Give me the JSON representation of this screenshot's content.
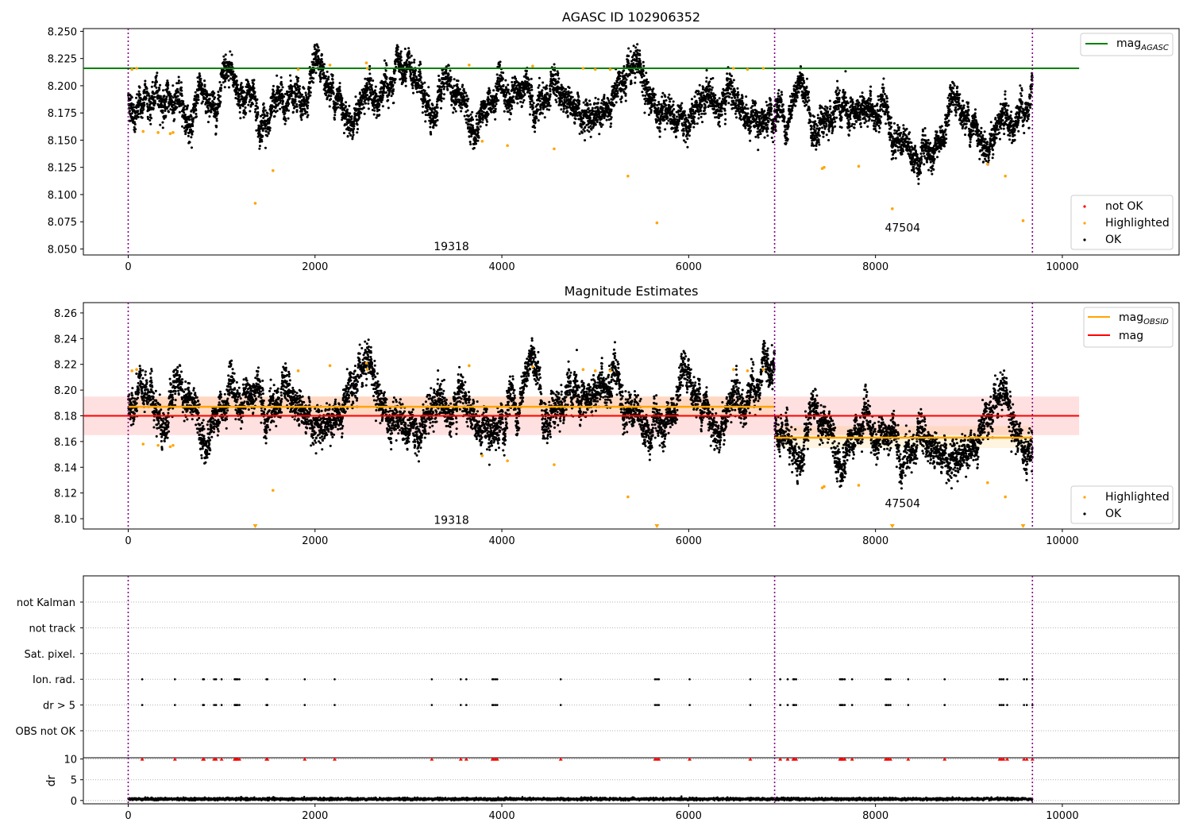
{
  "chart_data": [
    {
      "type": "scatter",
      "title": "AGASC ID 102906352",
      "xlim": [
        -480,
        11250
      ],
      "ylim": [
        8.0445,
        8.2525
      ],
      "x_ticks": [
        0,
        2000,
        4000,
        6000,
        8000,
        10000
      ],
      "y_ticks": [
        8.05,
        8.075,
        8.1,
        8.125,
        8.15,
        8.175,
        8.2,
        8.225,
        8.25
      ],
      "y_tick_format": 3,
      "obs_boundaries": [
        0,
        6920,
        9680
      ],
      "obs_labels": [
        {
          "text": "19318",
          "x": 3460,
          "y": 8.049
        },
        {
          "text": "47504",
          "x": 8290,
          "y": 8.066
        }
      ],
      "ref_lines": [
        {
          "name": "mag_AGASC",
          "color": "#008000",
          "value": 8.216,
          "x0": -480,
          "x1": 10180
        }
      ],
      "segments": [
        {
          "x0": 0,
          "x1": 6920,
          "mean": 8.186,
          "spread": 0.009,
          "noise": 0.006
        },
        {
          "x0": 6920,
          "x1": 9680,
          "mean": 8.163,
          "spread": 0.009,
          "noise": 0.006
        }
      ],
      "highlighted": [
        [
          40,
          8.215
        ],
        [
          90,
          8.216
        ],
        [
          160,
          8.158
        ],
        [
          320,
          8.157
        ],
        [
          450,
          8.156
        ],
        [
          480,
          8.157
        ],
        [
          1360,
          8.092
        ],
        [
          1550,
          8.122
        ],
        [
          1820,
          8.215
        ],
        [
          2160,
          8.219
        ],
        [
          2550,
          8.221
        ],
        [
          2560,
          8.216
        ],
        [
          3650,
          8.219
        ],
        [
          3790,
          8.149
        ],
        [
          4060,
          8.145
        ],
        [
          4330,
          8.218
        ],
        [
          4560,
          8.142
        ],
        [
          4870,
          8.216
        ],
        [
          5000,
          8.215
        ],
        [
          5160,
          8.215
        ],
        [
          5350,
          8.117
        ],
        [
          5660,
          8.074
        ],
        [
          6480,
          8.216
        ],
        [
          6630,
          8.215
        ],
        [
          6800,
          8.216
        ],
        [
          7430,
          8.124
        ],
        [
          7450,
          8.125
        ],
        [
          7820,
          8.126
        ],
        [
          8180,
          8.087
        ],
        [
          9200,
          8.128
        ],
        [
          9390,
          8.117
        ],
        [
          9580,
          8.076
        ]
      ],
      "legend": {
        "upper": [
          {
            "label": "mag",
            "sub": "AGASC",
            "color": "#008000"
          }
        ],
        "lower": [
          {
            "label": "not OK",
            "color": "#ff0000"
          },
          {
            "label": "Highlighted",
            "color": "#ffa500"
          },
          {
            "label": "OK",
            "color": "#000000"
          }
        ]
      }
    },
    {
      "type": "scatter",
      "title": "Magnitude Estimates",
      "xlim": [
        -480,
        11250
      ],
      "ylim": [
        8.092,
        8.268
      ],
      "x_ticks": [
        0,
        2000,
        4000,
        6000,
        8000,
        10000
      ],
      "y_ticks": [
        8.1,
        8.12,
        8.14,
        8.16,
        8.18,
        8.2,
        8.22,
        8.24,
        8.26
      ],
      "y_tick_format": 2,
      "obs_boundaries": [
        0,
        6920,
        9680
      ],
      "obs_labels": [
        {
          "text": "19318",
          "x": 3460,
          "y": 8.096
        },
        {
          "text": "47504",
          "x": 8290,
          "y": 8.109
        }
      ],
      "ref_lines": [
        {
          "name": "mag",
          "color": "#ff0000",
          "value": 8.18,
          "x0": -480,
          "x1": 10180,
          "band": [
            8.165,
            8.195
          ]
        }
      ],
      "segments": [
        {
          "x0": 0,
          "x1": 6920,
          "mean": 8.187,
          "spread": 0.009,
          "noise": 0.006,
          "band": [
            8.179,
            8.195
          ]
        },
        {
          "x0": 6920,
          "x1": 9680,
          "mean": 8.163,
          "spread": 0.009,
          "noise": 0.006,
          "band": [
            8.155,
            8.172
          ]
        }
      ],
      "highlighted": [
        [
          40,
          8.215
        ],
        [
          90,
          8.216
        ],
        [
          160,
          8.158
        ],
        [
          320,
          8.157
        ],
        [
          450,
          8.156
        ],
        [
          480,
          8.157
        ],
        [
          1550,
          8.122
        ],
        [
          1820,
          8.215
        ],
        [
          2160,
          8.219
        ],
        [
          2550,
          8.221
        ],
        [
          2560,
          8.216
        ],
        [
          3650,
          8.219
        ],
        [
          3790,
          8.149
        ],
        [
          4060,
          8.145
        ],
        [
          4330,
          8.218
        ],
        [
          4560,
          8.142
        ],
        [
          4870,
          8.216
        ],
        [
          5000,
          8.215
        ],
        [
          5160,
          8.215
        ],
        [
          5350,
          8.117
        ],
        [
          6480,
          8.216
        ],
        [
          6630,
          8.215
        ],
        [
          6800,
          8.216
        ],
        [
          7430,
          8.124
        ],
        [
          7450,
          8.125
        ],
        [
          7820,
          8.126
        ],
        [
          9200,
          8.128
        ],
        [
          9390,
          8.117
        ]
      ],
      "clipped_low": [
        1360,
        5660,
        8180,
        9580
      ],
      "legend": {
        "upper": [
          {
            "label": "mag",
            "sub": "OBSID",
            "color": "#ffa500"
          },
          {
            "label": "mag",
            "sub": "",
            "color": "#ff0000"
          }
        ],
        "lower": [
          {
            "label": "Highlighted",
            "color": "#ffa500"
          },
          {
            "label": "OK",
            "color": "#000000"
          }
        ]
      }
    },
    {
      "type": "scatter",
      "title": "",
      "xlim": [
        -480,
        11250
      ],
      "categories": [
        "not Kalman",
        "not track",
        "Sat. pixel.",
        "Ion. rad.",
        "dr > 5",
        "OBS not OK"
      ],
      "flag_events": {
        "Ion. rad.": [
          150,
          500,
          800,
          810,
          920,
          940,
          1000,
          1140,
          1150,
          1160,
          1170,
          1190,
          1480,
          1490,
          1890,
          2210,
          3250,
          3560,
          3620,
          3900,
          3910,
          3930,
          3950,
          4630,
          5640,
          5660,
          5680,
          6010,
          6660,
          6980,
          7060,
          7120,
          7130,
          7150,
          7620,
          7630,
          7640,
          7650,
          7670,
          7750,
          8110,
          8120,
          8140,
          8160,
          8350,
          8740,
          9330,
          9350,
          9370,
          9410,
          9590,
          9620,
          9680
        ],
        "dr > 5": [
          150,
          500,
          800,
          810,
          920,
          940,
          1000,
          1140,
          1150,
          1160,
          1170,
          1190,
          1480,
          1490,
          1890,
          2210,
          3250,
          3560,
          3620,
          3900,
          3910,
          3930,
          3950,
          4630,
          5640,
          5660,
          5680,
          6010,
          6660,
          6980,
          7060,
          7120,
          7130,
          7150,
          7620,
          7630,
          7640,
          7650,
          7670,
          7750,
          8110,
          8120,
          8140,
          8160,
          8350,
          8740,
          9330,
          9350,
          9370,
          9410,
          9590,
          9620,
          9680
        ]
      },
      "obs_boundaries": [
        0,
        6920,
        9680
      ]
    },
    {
      "type": "scatter",
      "title": "",
      "ylabel": "dr",
      "xlim": [
        -480,
        11250
      ],
      "ylim": [
        -0.8,
        10.3
      ],
      "x_ticks": [
        0,
        2000,
        4000,
        6000,
        8000,
        10000
      ],
      "y_ticks": [
        0,
        5,
        10
      ],
      "clipped_high": [
        150,
        500,
        800,
        810,
        920,
        940,
        1000,
        1140,
        1150,
        1160,
        1170,
        1190,
        1480,
        1490,
        1890,
        2210,
        3250,
        3560,
        3620,
        3900,
        3910,
        3930,
        3950,
        4630,
        5640,
        5660,
        5680,
        6010,
        6660,
        6980,
        7060,
        7120,
        7130,
        7150,
        7620,
        7630,
        7640,
        7650,
        7670,
        7750,
        8110,
        8120,
        8140,
        8160,
        8350,
        8740,
        9330,
        9350,
        9370,
        9410,
        9590,
        9620,
        9680
      ],
      "typical_dr": 0.35,
      "obs_boundaries": [
        0,
        6920,
        9680
      ]
    }
  ]
}
